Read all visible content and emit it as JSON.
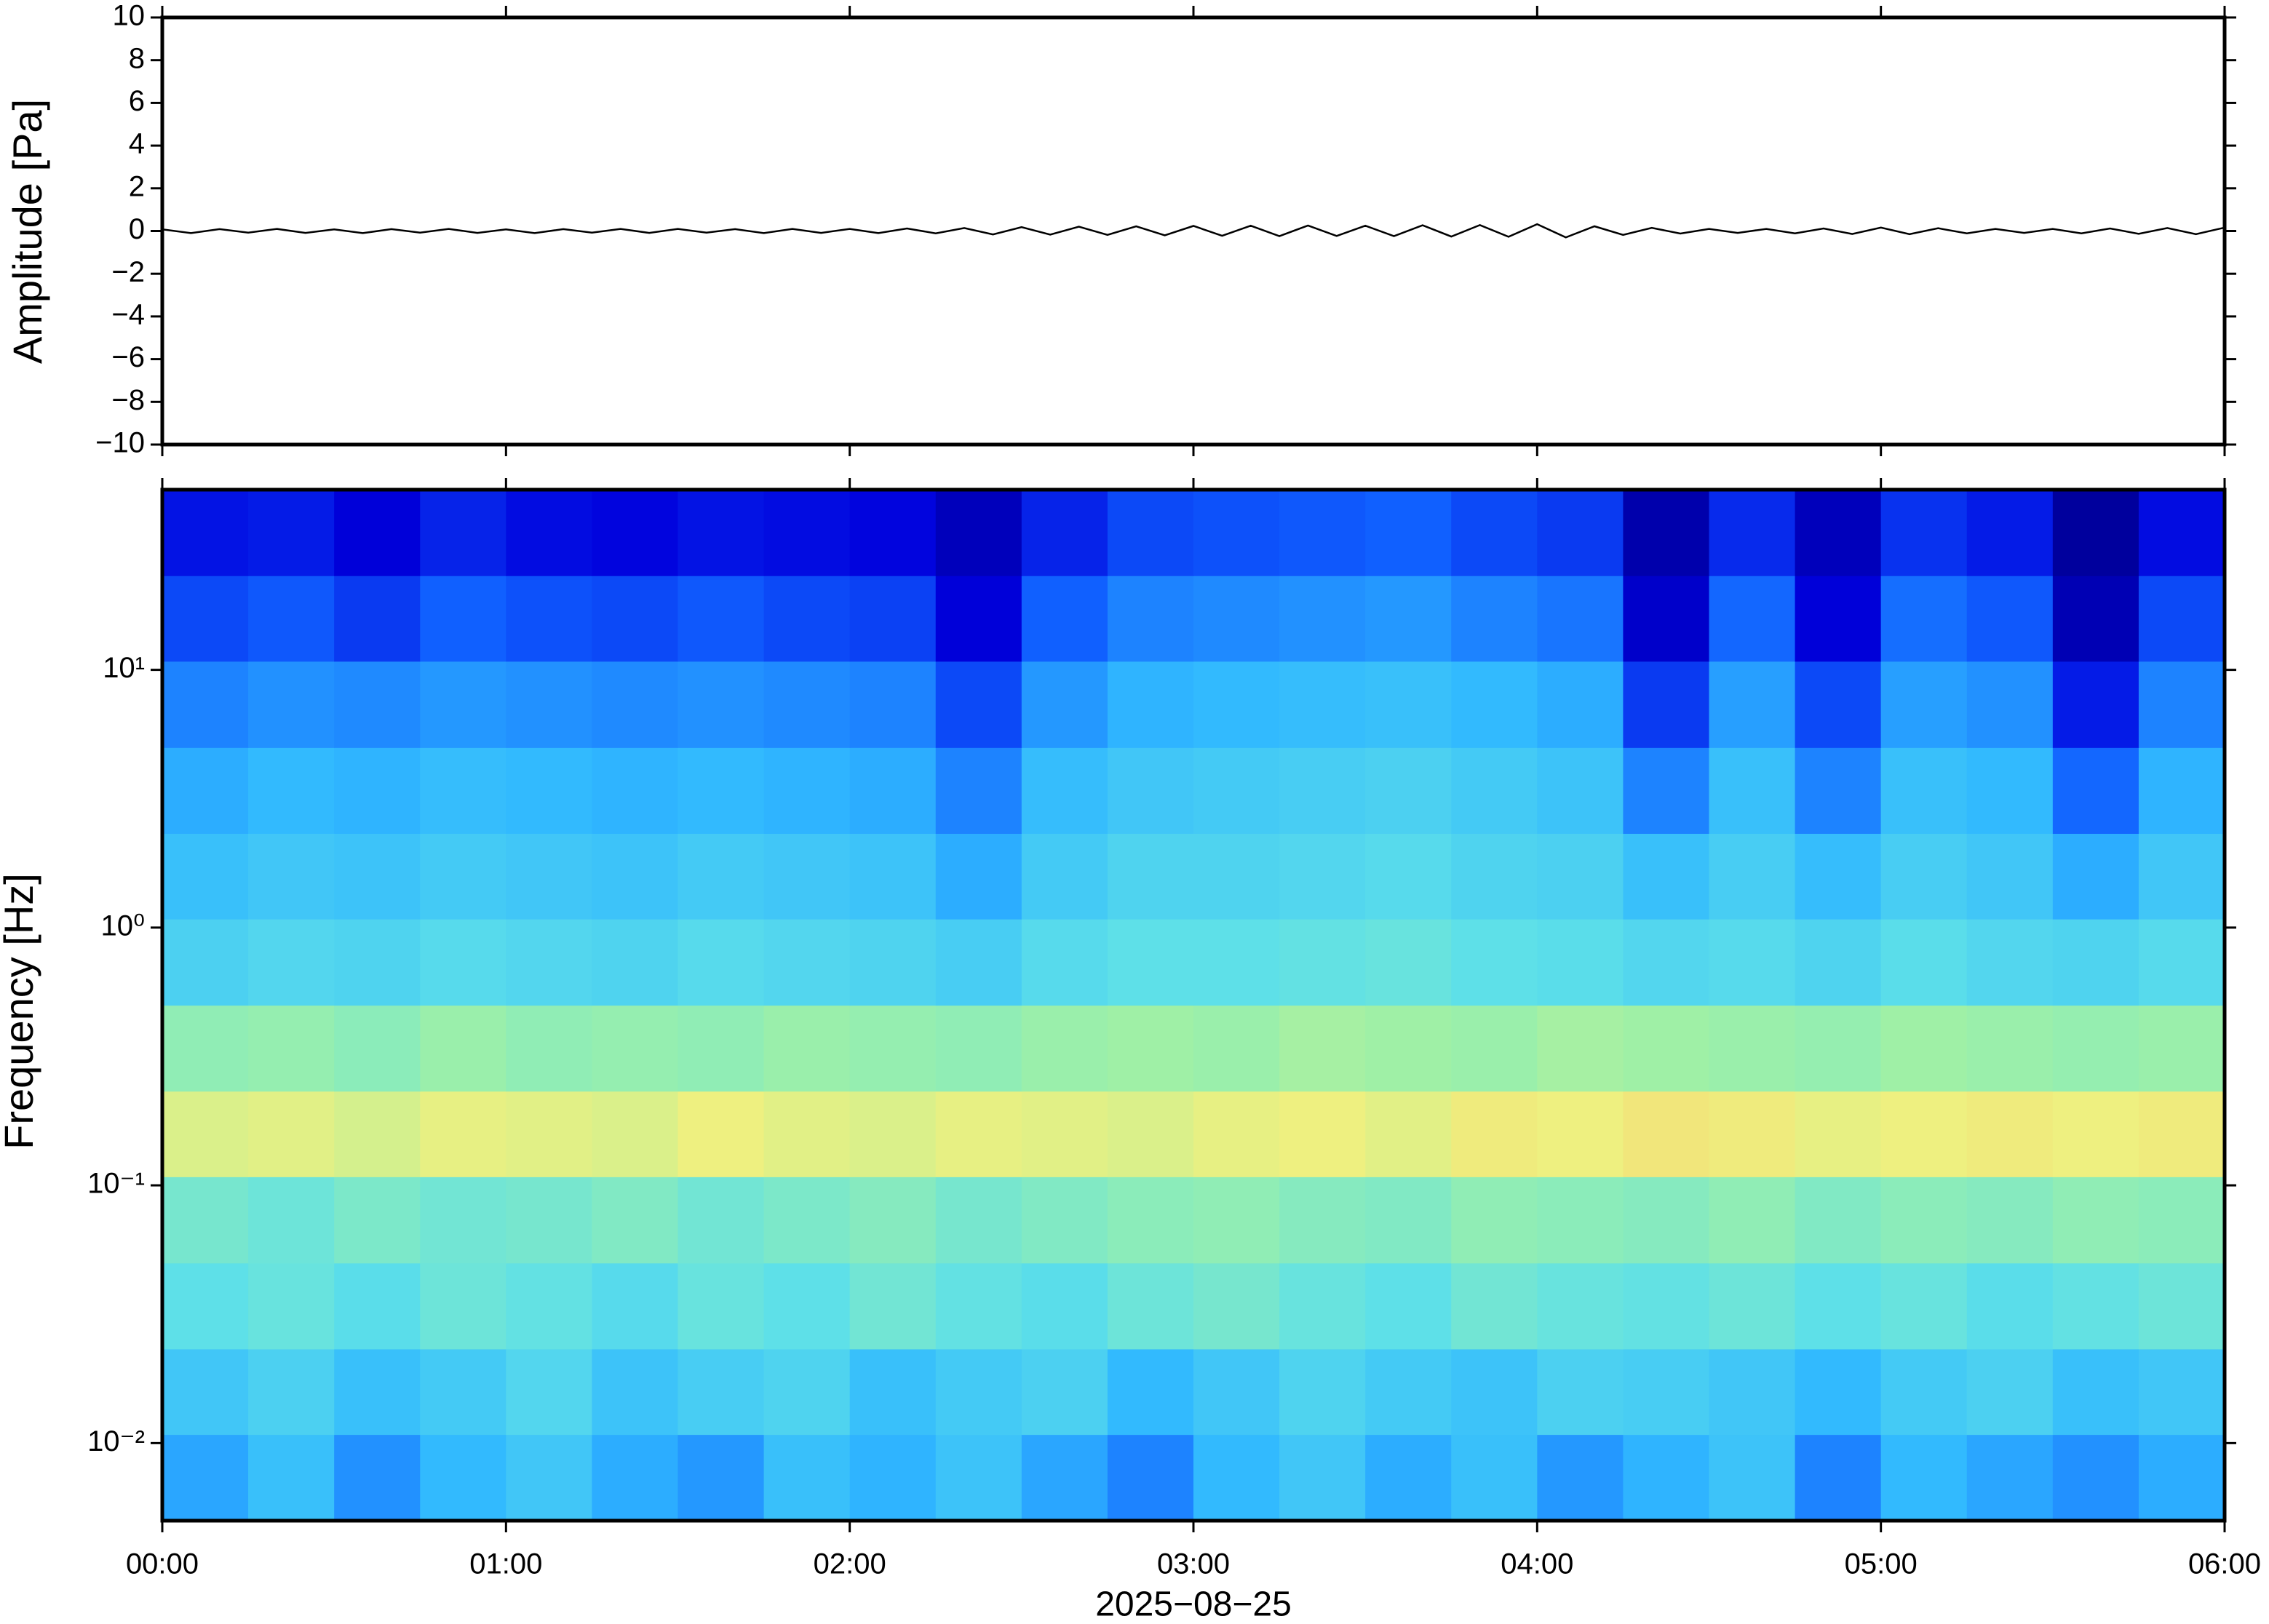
{
  "chart_data": [
    {
      "type": "line",
      "ylabel": "Amplitude [Pa]",
      "xlim": [
        0,
        360
      ],
      "xticks": [
        0,
        60,
        120,
        180,
        240,
        300,
        360
      ],
      "ylim": [
        -10,
        10
      ],
      "yticks": [
        {
          "value": -10,
          "label": "−10"
        },
        {
          "value": -8,
          "label": "−8"
        },
        {
          "value": -6,
          "label": "−6"
        },
        {
          "value": -4,
          "label": "−4"
        },
        {
          "value": -2,
          "label": "−2"
        },
        0,
        2,
        4,
        6,
        8,
        10
      ],
      "color": "#000000",
      "x": [
        0,
        5,
        10,
        15,
        20,
        25,
        30,
        35,
        40,
        45,
        50,
        55,
        60,
        65,
        70,
        75,
        80,
        85,
        90,
        95,
        100,
        105,
        110,
        115,
        120,
        125,
        130,
        135,
        140,
        145,
        150,
        155,
        160,
        165,
        170,
        175,
        180,
        185,
        190,
        195,
        200,
        205,
        210,
        215,
        220,
        225,
        230,
        235,
        240,
        245,
        250,
        255,
        260,
        265,
        270,
        275,
        280,
        285,
        290,
        295,
        300,
        305,
        310,
        315,
        320,
        325,
        330,
        335,
        340,
        345,
        350,
        355,
        360
      ],
      "values": [
        0.08,
        -0.1,
        0.09,
        -0.08,
        0.1,
        -0.09,
        0.08,
        -0.1,
        0.09,
        -0.08,
        0.1,
        -0.09,
        0.08,
        -0.1,
        0.09,
        -0.08,
        0.1,
        -0.09,
        0.1,
        -0.08,
        0.09,
        -0.1,
        0.1,
        -0.09,
        0.1,
        -0.1,
        0.12,
        -0.11,
        0.14,
        -0.16,
        0.18,
        -0.17,
        0.2,
        -0.18,
        0.22,
        -0.2,
        0.24,
        -0.22,
        0.25,
        -0.24,
        0.26,
        -0.23,
        0.25,
        -0.24,
        0.27,
        -0.26,
        0.28,
        -0.27,
        0.32,
        -0.3,
        0.22,
        -0.18,
        0.15,
        -0.12,
        0.1,
        -0.09,
        0.1,
        -0.11,
        0.12,
        -0.14,
        0.16,
        -0.15,
        0.13,
        -0.11,
        0.1,
        -0.09,
        0.1,
        -0.11,
        0.12,
        -0.13,
        0.14,
        -0.15,
        0.16
      ]
    },
    {
      "type": "heatmap",
      "ylabel": "Frequency [Hz]",
      "xlabel": "2025−08−25",
      "xlim": [
        0,
        360
      ],
      "xticks": [
        {
          "value": 0,
          "label": "00:00"
        },
        {
          "value": 60,
          "label": "01:00"
        },
        {
          "value": 120,
          "label": "02:00"
        },
        {
          "value": 180,
          "label": "03:00"
        },
        {
          "value": 240,
          "label": "04:00"
        },
        {
          "value": 300,
          "label": "05:00"
        },
        {
          "value": 360,
          "label": "06:00"
        }
      ],
      "ylim": [
        0.005,
        50
      ],
      "ylog": true,
      "yticks": [
        {
          "value": 0.01,
          "label": "10⁻²"
        },
        {
          "value": 0.1,
          "label": "10⁻¹"
        },
        {
          "value": 1,
          "label": "10⁰"
        },
        {
          "value": 10,
          "label": "10¹"
        }
      ],
      "zlim": [
        0,
        1
      ],
      "colormap": [
        "#00007f",
        "#0000dd",
        "#1060ff",
        "#30b8ff",
        "#5ee0e8",
        "#9cf0a8",
        "#eef080",
        "#ffb060",
        "#ff4020"
      ],
      "xbins": [
        0,
        15,
        30,
        45,
        60,
        75,
        90,
        105,
        120,
        135,
        150,
        165,
        180,
        195,
        210,
        225,
        240,
        255,
        270,
        285,
        300,
        315,
        330,
        345,
        360
      ],
      "ybins": [
        0.005,
        0.0108,
        0.0232,
        0.05,
        0.108,
        0.232,
        0.5,
        1.08,
        2.32,
        5,
        10.8,
        23.2,
        50
      ],
      "values": [
        [
          0.35,
          0.4,
          0.32,
          0.38,
          0.42,
          0.36,
          0.33,
          0.4,
          0.37,
          0.41,
          0.35,
          0.3,
          0.38,
          0.42,
          0.36,
          0.4,
          0.33,
          0.37,
          0.41,
          0.3,
          0.38,
          0.35,
          0.32,
          0.36
        ],
        [
          0.42,
          0.45,
          0.4,
          0.43,
          0.47,
          0.41,
          0.44,
          0.46,
          0.4,
          0.43,
          0.45,
          0.38,
          0.42,
          0.46,
          0.43,
          0.41,
          0.45,
          0.44,
          0.42,
          0.38,
          0.43,
          0.45,
          0.4,
          0.42
        ],
        [
          0.5,
          0.52,
          0.49,
          0.53,
          0.51,
          0.48,
          0.52,
          0.5,
          0.54,
          0.51,
          0.49,
          0.53,
          0.55,
          0.52,
          0.5,
          0.54,
          0.52,
          0.51,
          0.53,
          0.5,
          0.52,
          0.49,
          0.51,
          0.53
        ],
        [
          0.55,
          0.53,
          0.56,
          0.54,
          0.55,
          0.57,
          0.54,
          0.56,
          0.58,
          0.55,
          0.57,
          0.59,
          0.6,
          0.58,
          0.57,
          0.6,
          0.59,
          0.58,
          0.6,
          0.57,
          0.59,
          0.58,
          0.6,
          0.59
        ],
        [
          0.72,
          0.73,
          0.71,
          0.74,
          0.73,
          0.72,
          0.75,
          0.73,
          0.72,
          0.74,
          0.73,
          0.72,
          0.74,
          0.75,
          0.73,
          0.76,
          0.75,
          0.77,
          0.76,
          0.74,
          0.75,
          0.76,
          0.75,
          0.76
        ],
        [
          0.6,
          0.61,
          0.59,
          0.62,
          0.6,
          0.61,
          0.6,
          0.62,
          0.61,
          0.6,
          0.62,
          0.63,
          0.62,
          0.64,
          0.63,
          0.62,
          0.64,
          0.63,
          0.62,
          0.61,
          0.63,
          0.62,
          0.61,
          0.62
        ],
        [
          0.45,
          0.47,
          0.46,
          0.48,
          0.47,
          0.46,
          0.48,
          0.47,
          0.46,
          0.44,
          0.48,
          0.5,
          0.5,
          0.51,
          0.52,
          0.5,
          0.49,
          0.47,
          0.48,
          0.46,
          0.49,
          0.47,
          0.46,
          0.48
        ],
        [
          0.4,
          0.42,
          0.41,
          0.43,
          0.42,
          0.41,
          0.43,
          0.42,
          0.41,
          0.36,
          0.43,
          0.46,
          0.46,
          0.47,
          0.48,
          0.46,
          0.45,
          0.4,
          0.44,
          0.39,
          0.44,
          0.42,
          0.36,
          0.42
        ],
        [
          0.36,
          0.38,
          0.37,
          0.39,
          0.38,
          0.37,
          0.38,
          0.37,
          0.36,
          0.3,
          0.39,
          0.42,
          0.43,
          0.44,
          0.45,
          0.43,
          0.41,
          0.3,
          0.4,
          0.3,
          0.4,
          0.38,
          0.26,
          0.37
        ],
        [
          0.3,
          0.32,
          0.31,
          0.33,
          0.32,
          0.31,
          0.32,
          0.31,
          0.3,
          0.22,
          0.33,
          0.37,
          0.38,
          0.39,
          0.4,
          0.38,
          0.36,
          0.2,
          0.34,
          0.22,
          0.34,
          0.32,
          0.16,
          0.3
        ],
        [
          0.22,
          0.24,
          0.2,
          0.25,
          0.23,
          0.22,
          0.24,
          0.22,
          0.21,
          0.12,
          0.25,
          0.3,
          0.31,
          0.32,
          0.33,
          0.3,
          0.28,
          0.1,
          0.26,
          0.12,
          0.27,
          0.24,
          0.07,
          0.22
        ],
        [
          0.15,
          0.16,
          0.12,
          0.17,
          0.14,
          0.13,
          0.15,
          0.14,
          0.13,
          0.08,
          0.17,
          0.22,
          0.23,
          0.24,
          0.25,
          0.22,
          0.2,
          0.06,
          0.18,
          0.08,
          0.19,
          0.16,
          0.04,
          0.14
        ]
      ]
    }
  ]
}
